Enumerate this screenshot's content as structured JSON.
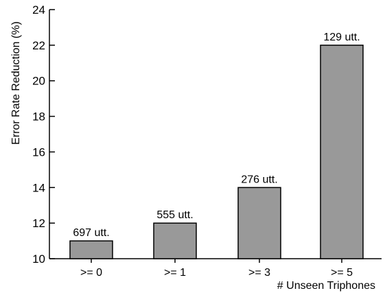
{
  "chart_data": {
    "type": "bar",
    "title": "",
    "xlabel": "# Unseen Triphones",
    "ylabel": "Error Rate Reduction (%)",
    "categories": [
      ">= 0",
      ">= 1",
      ">= 3",
      ">= 5"
    ],
    "values": [
      11,
      12,
      14,
      22
    ],
    "data_labels": [
      "697 utt.",
      "555 utt.",
      "276 utt.",
      "129 utt."
    ],
    "ylim": [
      10,
      24
    ],
    "yticks": [
      10,
      12,
      14,
      16,
      18,
      20,
      22,
      24
    ],
    "grid": false,
    "legend": "none",
    "colors": {
      "bar_fill": "#999999",
      "bar_stroke": "#000000",
      "axis": "#000000"
    }
  }
}
